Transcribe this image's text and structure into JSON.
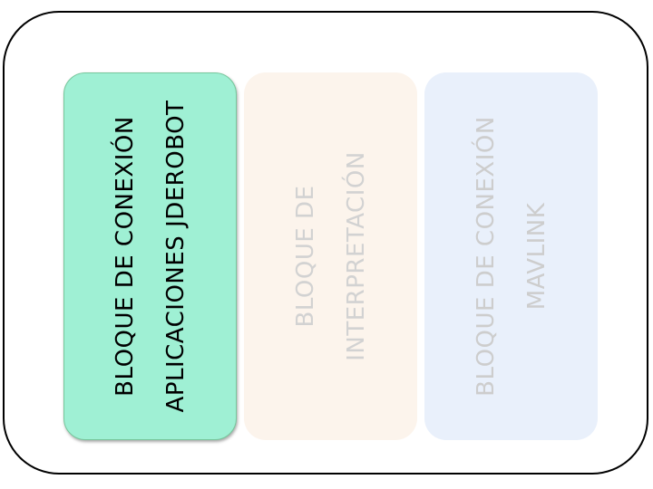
{
  "blocks": [
    {
      "lines": [
        "BLOQUE DE CONEXIÓN",
        "APLICACIONES JDEROBOT"
      ],
      "fill": "#9ff0d4",
      "text_color": "#000000"
    },
    {
      "lines": [
        "BLOQUE DE",
        "INTERPRETACIÓN"
      ],
      "fill": "#fcf4ec",
      "text_color": "#d2d2d2"
    },
    {
      "lines": [
        "BLOQUE DE CONEXIÓN",
        "MAVLINK"
      ],
      "fill": "#e9f0fb",
      "text_color": "#cdcdcd"
    }
  ]
}
